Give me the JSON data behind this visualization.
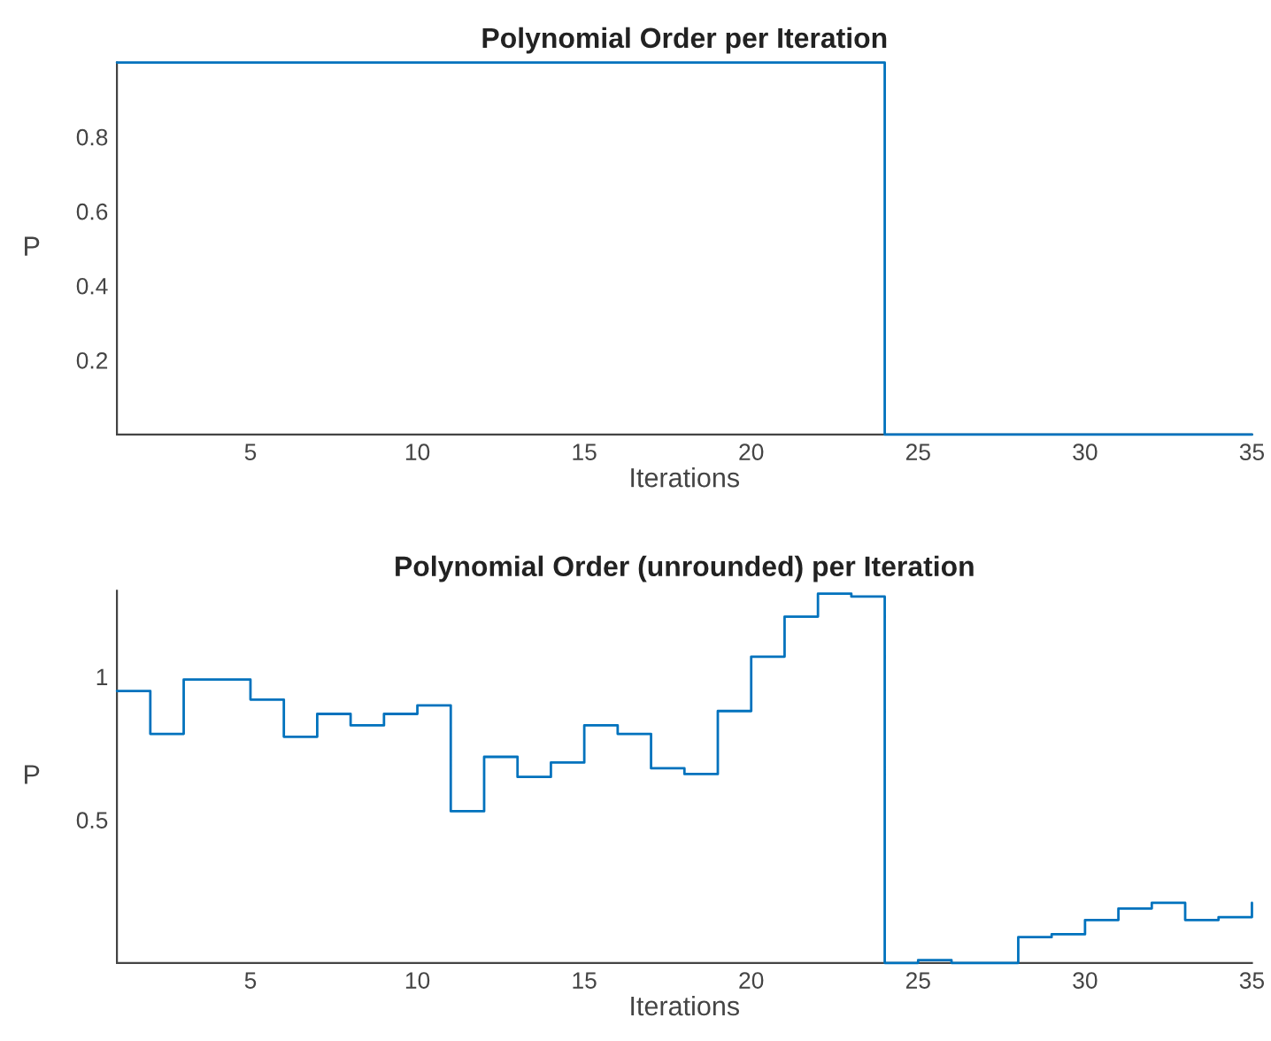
{
  "chart_data": [
    {
      "type": "step",
      "title": "Polynomial Order per Iteration",
      "xlabel": "Iterations",
      "ylabel": "P",
      "x": [
        1,
        2,
        3,
        4,
        5,
        6,
        7,
        8,
        9,
        10,
        11,
        12,
        13,
        14,
        15,
        16,
        17,
        18,
        19,
        20,
        21,
        22,
        23,
        24,
        25,
        26,
        27,
        28,
        29,
        30,
        31,
        32,
        33,
        34,
        35
      ],
      "series": [
        {
          "color": "#0072bd",
          "values": [
            1,
            1,
            1,
            1,
            1,
            1,
            1,
            1,
            1,
            1,
            1,
            1,
            1,
            1,
            1,
            1,
            1,
            1,
            1,
            1,
            1,
            1,
            1,
            0,
            0,
            0,
            0,
            0,
            0,
            0,
            0,
            0,
            0,
            0,
            0
          ]
        }
      ],
      "xlim": [
        1,
        35
      ],
      "xticks": [
        5,
        10,
        15,
        20,
        25,
        30,
        35
      ],
      "ylim": [
        0,
        1
      ],
      "yticks": [
        0.2,
        0.4,
        0.6,
        0.8
      ],
      "grid": false
    },
    {
      "type": "step",
      "title": "Polynomial Order (unrounded) per Iteration",
      "xlabel": "Iterations",
      "ylabel": "P",
      "x": [
        1,
        2,
        3,
        4,
        5,
        6,
        7,
        8,
        9,
        10,
        11,
        12,
        13,
        14,
        15,
        16,
        17,
        18,
        19,
        20,
        21,
        22,
        23,
        24,
        25,
        26,
        27,
        28,
        29,
        30,
        31,
        32,
        33,
        34,
        35
      ],
      "series": [
        {
          "color": "#0072bd",
          "values": [
            0.95,
            0.8,
            0.99,
            0.99,
            0.92,
            0.79,
            0.87,
            0.83,
            0.87,
            0.9,
            0.53,
            0.72,
            0.65,
            0.7,
            0.83,
            0.8,
            0.68,
            0.66,
            0.88,
            1.07,
            1.21,
            1.29,
            1.28,
            0,
            0.01,
            0,
            0,
            0.09,
            0.1,
            0.15,
            0.19,
            0.21,
            0.15,
            0.16,
            0.21
          ]
        }
      ],
      "xlim": [
        1,
        35
      ],
      "xticks": [
        5,
        10,
        15,
        20,
        25,
        30,
        35
      ],
      "ylim": [
        0,
        1.3
      ],
      "yticks": [
        0.5,
        1
      ],
      "grid": false
    }
  ]
}
